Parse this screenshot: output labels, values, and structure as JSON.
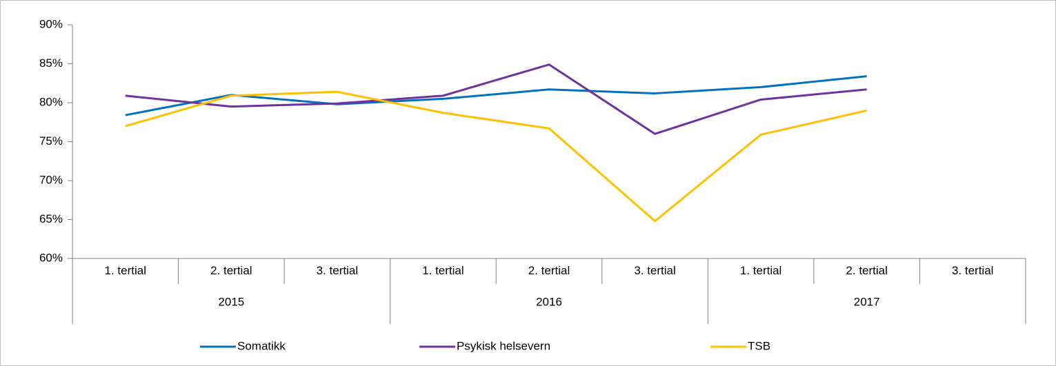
{
  "chart_data": {
    "type": "line",
    "categories": [
      "1. tertial",
      "2. tertial",
      "3. tertial",
      "1. tertial",
      "2. tertial",
      "3. tertial",
      "1. tertial",
      "2. tertial",
      "3. tertial"
    ],
    "category_groups": [
      {
        "name": "2015",
        "count": 3
      },
      {
        "name": "2016",
        "count": 3
      },
      {
        "name": "2017",
        "count": 3
      }
    ],
    "series": [
      {
        "name": "Somatikk",
        "color": "#0070C0",
        "values": [
          78.4,
          81.0,
          79.8,
          80.5,
          81.7,
          81.2,
          82.0,
          83.4,
          null
        ]
      },
      {
        "name": "Psykisk helsevern",
        "color": "#7030A0",
        "values": [
          80.9,
          79.5,
          79.9,
          80.9,
          84.9,
          76.0,
          80.4,
          81.7,
          null
        ]
      },
      {
        "name": "TSB",
        "color": "#FFC000",
        "values": [
          77.0,
          80.9,
          81.4,
          78.7,
          76.7,
          64.8,
          75.9,
          79.0,
          null
        ]
      }
    ],
    "ylim": [
      60,
      90
    ],
    "yticks": [
      {
        "value": 60,
        "label": "60%"
      },
      {
        "value": 65,
        "label": "65%"
      },
      {
        "value": 70,
        "label": "70%"
      },
      {
        "value": 75,
        "label": "75%"
      },
      {
        "value": 80,
        "label": "80%"
      },
      {
        "value": 85,
        "label": "85%"
      },
      {
        "value": 90,
        "label": "90%"
      }
    ],
    "grid": false,
    "legend": "bottom"
  }
}
